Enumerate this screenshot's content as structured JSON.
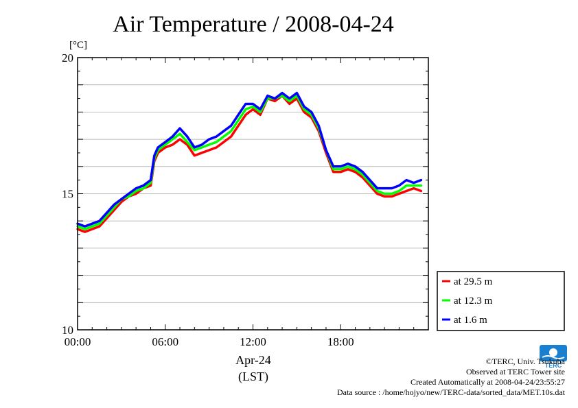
{
  "chart_data": {
    "type": "line",
    "title": "Air Temperature / 2008-04-24",
    "unit_label": "[°C]",
    "xlabel": "Apr-24",
    "xlabel2": "(LST)",
    "xlim": [
      0,
      24
    ],
    "ylim": [
      10,
      20
    ],
    "x_ticks": [
      {
        "x": 0,
        "label": "00:00"
      },
      {
        "x": 6,
        "label": "06:00"
      },
      {
        "x": 12,
        "label": "12:00"
      },
      {
        "x": 18,
        "label": "18:00"
      }
    ],
    "y_ticks": [
      {
        "y": 10,
        "label": "10"
      },
      {
        "y": 15,
        "label": "15"
      },
      {
        "y": 20,
        "label": "20"
      }
    ],
    "grid": true,
    "legend_position": "bottom-right outside",
    "x": [
      0,
      0.5,
      1,
      1.5,
      2,
      2.5,
      3,
      3.5,
      4,
      4.5,
      5,
      5.25,
      5.5,
      6,
      6.5,
      7,
      7.5,
      8,
      8.5,
      9,
      9.5,
      10,
      10.5,
      11,
      11.5,
      12,
      12.5,
      13,
      13.5,
      14,
      14.5,
      15,
      15.5,
      16,
      16.5,
      17,
      17.5,
      18,
      18.5,
      19,
      19.5,
      20,
      20.5,
      21,
      21.5,
      22,
      22.5,
      23,
      23.5
    ],
    "series": [
      {
        "name": "at 29.5 m",
        "color": "#ff0000",
        "values": [
          13.7,
          13.6,
          13.7,
          13.8,
          14.1,
          14.4,
          14.7,
          14.9,
          15.0,
          15.2,
          15.3,
          16.2,
          16.5,
          16.7,
          16.8,
          17.0,
          16.8,
          16.4,
          16.5,
          16.6,
          16.7,
          16.9,
          17.1,
          17.5,
          17.9,
          18.1,
          17.9,
          18.5,
          18.4,
          18.6,
          18.3,
          18.5,
          18.0,
          17.8,
          17.3,
          16.5,
          15.8,
          15.8,
          15.9,
          15.8,
          15.6,
          15.3,
          15.0,
          14.9,
          14.9,
          15.0,
          15.1,
          15.2,
          15.1
        ]
      },
      {
        "name": "at 12.3 m",
        "color": "#00ff00",
        "values": [
          13.8,
          13.7,
          13.8,
          13.9,
          14.2,
          14.5,
          14.8,
          14.9,
          15.1,
          15.2,
          15.4,
          16.3,
          16.6,
          16.8,
          17.0,
          17.2,
          16.9,
          16.6,
          16.7,
          16.8,
          16.9,
          17.1,
          17.3,
          17.7,
          18.1,
          18.2,
          18.0,
          18.5,
          18.5,
          18.6,
          18.4,
          18.6,
          18.1,
          17.9,
          17.4,
          16.6,
          15.9,
          15.9,
          16.0,
          15.9,
          15.7,
          15.4,
          15.1,
          15.0,
          15.0,
          15.1,
          15.3,
          15.3,
          15.3
        ]
      },
      {
        "name": "at 1.6 m",
        "color": "#0000ff",
        "values": [
          13.9,
          13.8,
          13.9,
          14.0,
          14.3,
          14.6,
          14.8,
          15.0,
          15.2,
          15.3,
          15.5,
          16.4,
          16.7,
          16.9,
          17.1,
          17.4,
          17.1,
          16.7,
          16.8,
          17.0,
          17.1,
          17.3,
          17.5,
          17.9,
          18.3,
          18.3,
          18.1,
          18.6,
          18.5,
          18.7,
          18.5,
          18.7,
          18.2,
          18.0,
          17.5,
          16.6,
          16.0,
          16.0,
          16.1,
          16.0,
          15.8,
          15.5,
          15.2,
          15.2,
          15.2,
          15.3,
          15.5,
          15.4,
          15.5
        ]
      }
    ]
  },
  "logo": {
    "text": "TERC",
    "color": "#1b7fd0"
  },
  "footer": {
    "copyright": "©TERC, Univ. Tsukuba",
    "observed": "Observed at TERC Tower site",
    "created": "Created Automatically at 2008-04-24/23:55:27",
    "source": "Data source : /home/hojyo/new/TERC-data/sorted_data/MET.10s.dat"
  }
}
